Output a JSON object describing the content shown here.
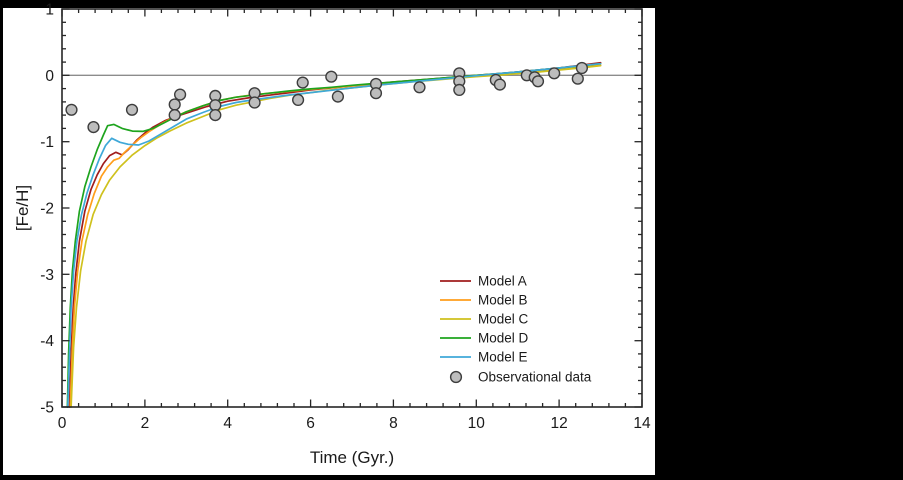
{
  "canvas": {
    "background": "#000000",
    "surface": "#ffffff"
  },
  "chart_data": {
    "type": "line+scatter",
    "title": "",
    "xlabel": "Time (Gyr.)",
    "ylabel": "[Fe/H]",
    "xlim": [
      0,
      14
    ],
    "ylim": [
      -5,
      1
    ],
    "x_major_ticks": [
      0,
      2,
      4,
      6,
      8,
      10,
      12,
      14
    ],
    "x_minor_step": 0.4,
    "y_major_ticks": [
      1,
      0,
      -1,
      -2,
      -3,
      -4,
      -5
    ],
    "y_minor_step": 0.2,
    "grid": false,
    "zero_line_y": 0,
    "colors": {
      "axis": "#262626",
      "zero_line": "#8c8c8c",
      "text": "#1a1a1a"
    },
    "legend": {
      "position": "inside-lower-right"
    },
    "series": [
      {
        "name": "Model A",
        "color": "#a11d1d",
        "points": [
          [
            0.18,
            -5
          ],
          [
            0.22,
            -4.2
          ],
          [
            0.27,
            -3.5
          ],
          [
            0.33,
            -3.0
          ],
          [
            0.42,
            -2.5
          ],
          [
            0.55,
            -2.05
          ],
          [
            0.7,
            -1.72
          ],
          [
            0.85,
            -1.5
          ],
          [
            1.0,
            -1.33
          ],
          [
            1.15,
            -1.21
          ],
          [
            1.3,
            -1.16
          ],
          [
            1.45,
            -1.2
          ],
          [
            1.6,
            -1.12
          ],
          [
            1.8,
            -0.98
          ],
          [
            2.0,
            -0.87
          ],
          [
            2.2,
            -0.78
          ],
          [
            2.5,
            -0.68
          ],
          [
            2.8,
            -0.61
          ],
          [
            3.1,
            -0.55
          ],
          [
            3.5,
            -0.47
          ],
          [
            4.0,
            -0.39
          ],
          [
            4.5,
            -0.34
          ],
          [
            5.0,
            -0.3
          ],
          [
            5.5,
            -0.26
          ],
          [
            6.0,
            -0.22
          ],
          [
            6.5,
            -0.19
          ],
          [
            7.0,
            -0.16
          ],
          [
            7.5,
            -0.13
          ],
          [
            8.0,
            -0.1
          ],
          [
            8.5,
            -0.075
          ],
          [
            9.0,
            -0.05
          ],
          [
            9.5,
            -0.025
          ],
          [
            10.0,
            0.0
          ],
          [
            10.5,
            0.025
          ],
          [
            11.0,
            0.05
          ],
          [
            11.5,
            0.08
          ],
          [
            12.0,
            0.11
          ],
          [
            12.5,
            0.15
          ],
          [
            13.0,
            0.19
          ]
        ]
      },
      {
        "name": "Model B",
        "color": "#ff9e1b",
        "points": [
          [
            0.2,
            -5
          ],
          [
            0.25,
            -4.1
          ],
          [
            0.3,
            -3.5
          ],
          [
            0.38,
            -2.95
          ],
          [
            0.48,
            -2.5
          ],
          [
            0.62,
            -2.1
          ],
          [
            0.78,
            -1.78
          ],
          [
            0.95,
            -1.52
          ],
          [
            1.1,
            -1.38
          ],
          [
            1.25,
            -1.28
          ],
          [
            1.38,
            -1.25
          ],
          [
            1.5,
            -1.17
          ],
          [
            1.7,
            -1.05
          ],
          [
            1.9,
            -0.94
          ],
          [
            2.1,
            -0.85
          ],
          [
            2.4,
            -0.73
          ],
          [
            2.7,
            -0.63
          ],
          [
            3.0,
            -0.55
          ],
          [
            3.4,
            -0.46
          ],
          [
            3.8,
            -0.38
          ],
          [
            4.2,
            -0.33
          ],
          [
            4.6,
            -0.295
          ],
          [
            5.0,
            -0.27
          ],
          [
            5.5,
            -0.24
          ],
          [
            6.0,
            -0.21
          ],
          [
            6.5,
            -0.185
          ],
          [
            7.0,
            -0.16
          ],
          [
            7.5,
            -0.135
          ],
          [
            8.0,
            -0.11
          ],
          [
            8.5,
            -0.085
          ],
          [
            9.0,
            -0.06
          ],
          [
            9.5,
            -0.04
          ],
          [
            10.0,
            -0.015
          ],
          [
            10.5,
            0.005
          ],
          [
            11.0,
            0.03
          ],
          [
            11.5,
            0.055
          ],
          [
            12.0,
            0.085
          ],
          [
            12.5,
            0.115
          ],
          [
            13.0,
            0.15
          ]
        ]
      },
      {
        "name": "Model C",
        "color": "#cfc11d",
        "points": [
          [
            0.22,
            -5
          ],
          [
            0.28,
            -4.1
          ],
          [
            0.35,
            -3.5
          ],
          [
            0.45,
            -2.95
          ],
          [
            0.58,
            -2.5
          ],
          [
            0.75,
            -2.1
          ],
          [
            0.95,
            -1.8
          ],
          [
            1.15,
            -1.58
          ],
          [
            1.4,
            -1.38
          ],
          [
            1.7,
            -1.2
          ],
          [
            2.0,
            -1.06
          ],
          [
            2.3,
            -0.94
          ],
          [
            2.6,
            -0.84
          ],
          [
            3.0,
            -0.72
          ],
          [
            3.4,
            -0.62
          ],
          [
            3.8,
            -0.52
          ],
          [
            4.2,
            -0.45
          ],
          [
            4.6,
            -0.4
          ],
          [
            5.0,
            -0.35
          ],
          [
            5.5,
            -0.3
          ],
          [
            6.0,
            -0.26
          ],
          [
            6.5,
            -0.22
          ],
          [
            7.0,
            -0.19
          ],
          [
            7.5,
            -0.155
          ],
          [
            8.0,
            -0.125
          ],
          [
            8.5,
            -0.095
          ],
          [
            9.0,
            -0.07
          ],
          [
            9.5,
            -0.045
          ],
          [
            10.0,
            -0.02
          ],
          [
            10.5,
            0.0
          ],
          [
            11.0,
            0.025
          ],
          [
            11.5,
            0.05
          ],
          [
            12.0,
            0.08
          ],
          [
            12.5,
            0.11
          ],
          [
            13.0,
            0.145
          ]
        ]
      },
      {
        "name": "Model D",
        "color": "#1ea41e",
        "points": [
          [
            0.13,
            -5
          ],
          [
            0.16,
            -4.2
          ],
          [
            0.2,
            -3.5
          ],
          [
            0.25,
            -2.95
          ],
          [
            0.32,
            -2.5
          ],
          [
            0.42,
            -2.05
          ],
          [
            0.55,
            -1.68
          ],
          [
            0.7,
            -1.38
          ],
          [
            0.85,
            -1.12
          ],
          [
            1.0,
            -0.9
          ],
          [
            1.1,
            -0.76
          ],
          [
            1.25,
            -0.74
          ],
          [
            1.45,
            -0.8
          ],
          [
            1.7,
            -0.84
          ],
          [
            1.95,
            -0.845
          ],
          [
            2.2,
            -0.8
          ],
          [
            2.45,
            -0.72
          ],
          [
            2.7,
            -0.64
          ],
          [
            3.0,
            -0.55
          ],
          [
            3.4,
            -0.46
          ],
          [
            3.8,
            -0.38
          ],
          [
            4.2,
            -0.33
          ],
          [
            4.6,
            -0.3
          ],
          [
            5.0,
            -0.27
          ],
          [
            5.5,
            -0.235
          ],
          [
            6.0,
            -0.205
          ],
          [
            6.5,
            -0.18
          ],
          [
            7.0,
            -0.15
          ],
          [
            7.5,
            -0.125
          ],
          [
            8.0,
            -0.1
          ],
          [
            8.5,
            -0.075
          ],
          [
            9.0,
            -0.05
          ],
          [
            9.5,
            -0.025
          ],
          [
            10.0,
            0.0
          ],
          [
            10.5,
            0.025
          ],
          [
            11.0,
            0.05
          ],
          [
            11.5,
            0.08
          ],
          [
            12.0,
            0.11
          ],
          [
            12.5,
            0.14
          ],
          [
            13.0,
            0.175
          ]
        ]
      },
      {
        "name": "Model E",
        "color": "#3fa8d8",
        "points": [
          [
            0.14,
            -5
          ],
          [
            0.18,
            -4.2
          ],
          [
            0.22,
            -3.5
          ],
          [
            0.28,
            -2.95
          ],
          [
            0.36,
            -2.5
          ],
          [
            0.47,
            -2.1
          ],
          [
            0.6,
            -1.78
          ],
          [
            0.75,
            -1.5
          ],
          [
            0.9,
            -1.26
          ],
          [
            1.05,
            -1.06
          ],
          [
            1.2,
            -0.95
          ],
          [
            1.4,
            -1.01
          ],
          [
            1.6,
            -1.04
          ],
          [
            1.85,
            -1.05
          ],
          [
            2.1,
            -0.99
          ],
          [
            2.4,
            -0.88
          ],
          [
            2.7,
            -0.77
          ],
          [
            3.0,
            -0.66
          ],
          [
            3.4,
            -0.56
          ],
          [
            3.8,
            -0.47
          ],
          [
            4.2,
            -0.41
          ],
          [
            4.6,
            -0.37
          ],
          [
            5.0,
            -0.335
          ],
          [
            5.5,
            -0.295
          ],
          [
            6.0,
            -0.26
          ],
          [
            6.5,
            -0.225
          ],
          [
            7.0,
            -0.19
          ],
          [
            7.5,
            -0.155
          ],
          [
            8.0,
            -0.125
          ],
          [
            8.5,
            -0.095
          ],
          [
            9.0,
            -0.065
          ],
          [
            9.5,
            -0.035
          ],
          [
            10.0,
            -0.005
          ],
          [
            10.5,
            0.025
          ],
          [
            11.0,
            0.05
          ],
          [
            11.5,
            0.08
          ],
          [
            12.0,
            0.11
          ],
          [
            12.5,
            0.145
          ],
          [
            13.0,
            0.175
          ]
        ]
      }
    ],
    "scatter": {
      "name": "Observational data",
      "fill": "#bdbdbd",
      "stroke": "#3d3d3d",
      "points": [
        [
          0.23,
          -0.52
        ],
        [
          0.76,
          -0.78
        ],
        [
          1.69,
          -0.52
        ],
        [
          2.72,
          -0.44
        ],
        [
          2.72,
          -0.6
        ],
        [
          2.85,
          -0.29
        ],
        [
          3.7,
          -0.31
        ],
        [
          3.7,
          -0.45
        ],
        [
          3.7,
          -0.6
        ],
        [
          4.65,
          -0.27
        ],
        [
          4.65,
          -0.41
        ],
        [
          5.7,
          -0.37
        ],
        [
          5.81,
          -0.11
        ],
        [
          6.5,
          -0.02
        ],
        [
          6.66,
          -0.32
        ],
        [
          7.58,
          -0.13
        ],
        [
          7.58,
          -0.27
        ],
        [
          8.63,
          -0.18
        ],
        [
          9.59,
          0.03
        ],
        [
          9.59,
          -0.09
        ],
        [
          9.59,
          -0.22
        ],
        [
          10.47,
          -0.07
        ],
        [
          10.57,
          -0.14
        ],
        [
          11.22,
          0.0
        ],
        [
          11.41,
          -0.03
        ],
        [
          11.49,
          -0.09
        ],
        [
          11.88,
          0.03
        ],
        [
          12.45,
          -0.05
        ],
        [
          12.55,
          0.11
        ]
      ]
    }
  }
}
